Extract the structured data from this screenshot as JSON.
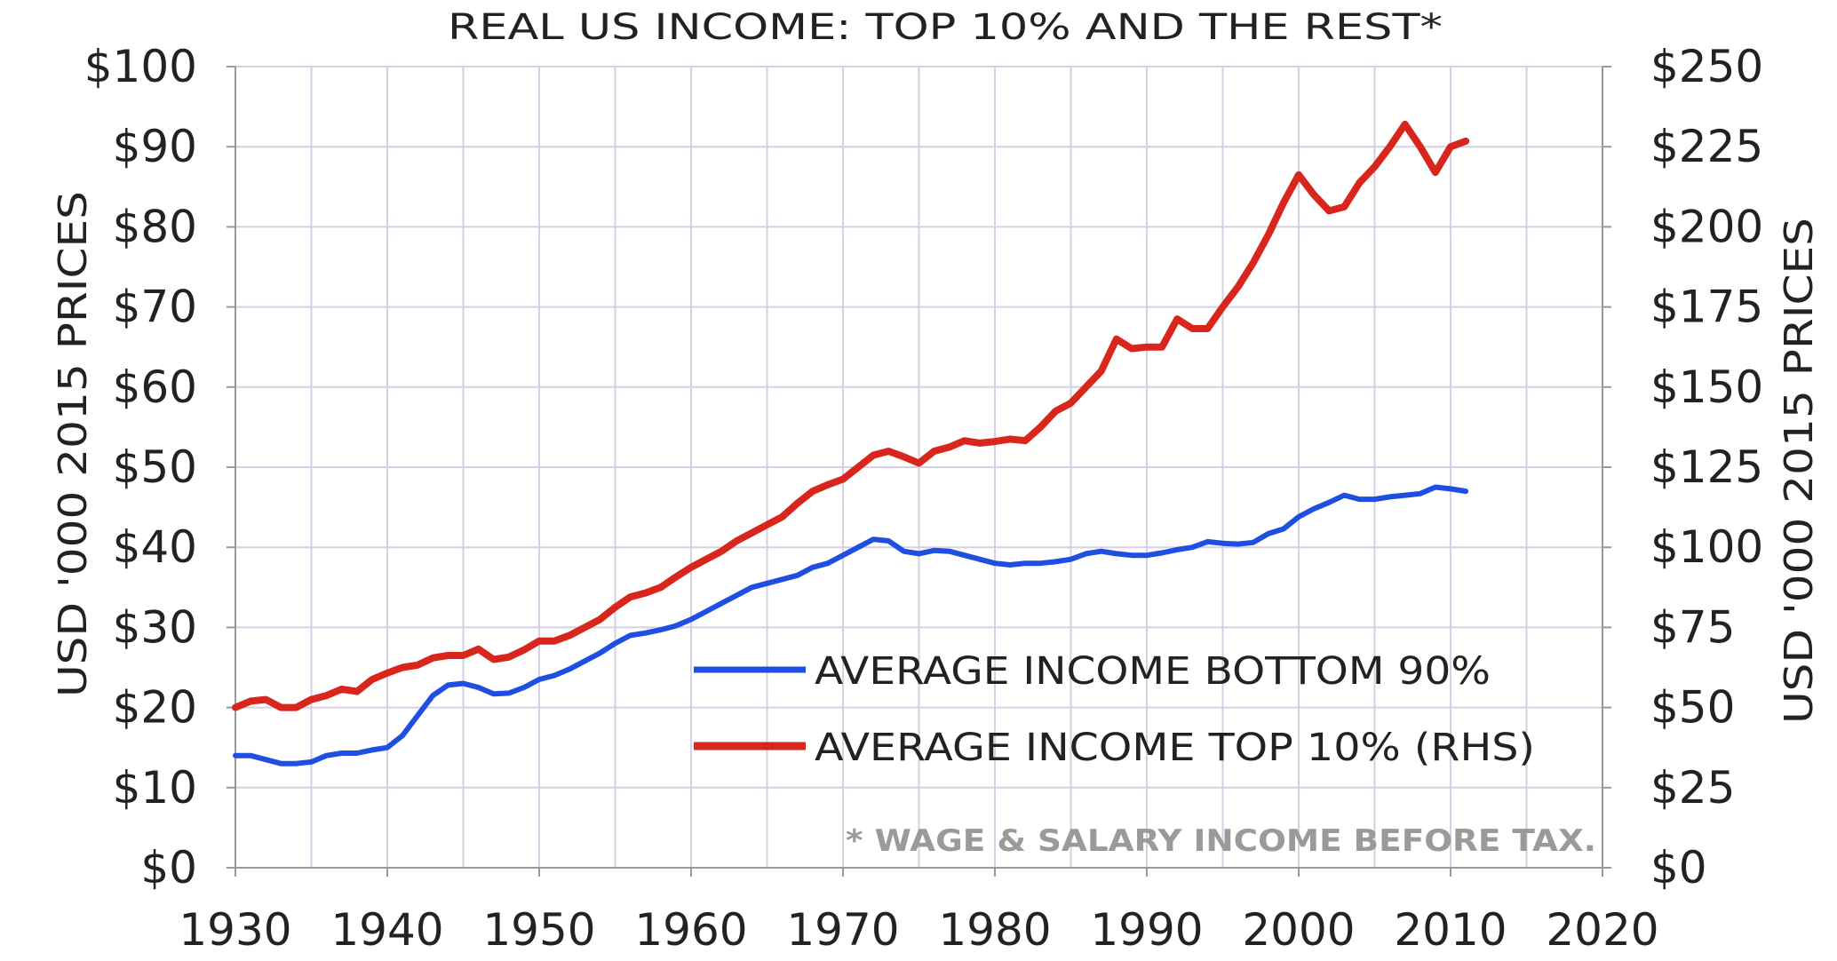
{
  "chart_data": {
    "type": "line",
    "title": "REAL US INCOME: TOP 10% AND THE REST*",
    "xlabel": "",
    "ylabel_left": "USD '000 2015 PRICES",
    "ylabel_right": "USD '000 2015 PRICES",
    "xlim": [
      1930,
      2020
    ],
    "ylim_left": [
      0,
      100
    ],
    "ylim_right": [
      0,
      250
    ],
    "x_ticks": [
      "1930",
      "1940",
      "1950",
      "1960",
      "1970",
      "1980",
      "1990",
      "2000",
      "2010",
      "2020"
    ],
    "y_ticks_left": [
      "$0",
      "$10",
      "$20",
      "$30",
      "$40",
      "$50",
      "$60",
      "$70",
      "$80",
      "$90",
      "$100"
    ],
    "y_ticks_right": [
      "$0",
      "$25",
      "$50",
      "$75",
      "$100",
      "$125",
      "$150",
      "$175",
      "$200",
      "$225",
      "$250"
    ],
    "grid": true,
    "legend_placement": "lower-right",
    "footnote": "* WAGE & SALARY INCOME BEFORE TAX.",
    "x_start": 1930,
    "series": [
      {
        "name": "AVERAGE INCOME BOTTOM 90%",
        "axis": "left",
        "color": "#1f4fe0",
        "values": [
          14,
          14,
          13.5,
          13,
          13,
          13.2,
          14,
          14.3,
          14.3,
          14.7,
          15,
          16.5,
          19,
          21.5,
          22.8,
          23,
          22.5,
          21.7,
          21.8,
          22.5,
          23.5,
          24,
          24.8,
          25.8,
          26.8,
          28,
          29,
          29.3,
          29.7,
          30.2,
          31,
          32,
          33,
          34,
          35,
          35.5,
          36,
          36.5,
          37.5,
          38,
          39,
          40,
          41,
          40.8,
          39.5,
          39.2,
          39.6,
          39.5,
          39,
          38.5,
          38,
          37.8,
          38,
          38,
          38.2,
          38.5,
          39.2,
          39.5,
          39.2,
          39,
          39,
          39.3,
          39.7,
          40,
          40.7,
          40.5,
          40.4,
          40.6,
          41.7,
          42.3,
          43.8,
          44.8,
          45.6,
          46.5,
          46,
          46,
          46.3,
          46.5,
          46.7,
          47.5,
          47.3,
          47
        ]
      },
      {
        "name": "AVERAGE INCOME TOP 10% (RHS)",
        "axis": "right",
        "color": "#d9261c",
        "values": [
          50,
          52,
          52.5,
          50,
          50,
          52.5,
          53.75,
          55.75,
          55,
          58.75,
          60.75,
          62.5,
          63.25,
          65.5,
          66.25,
          66.25,
          68.25,
          65,
          65.75,
          68,
          70.75,
          70.75,
          72.5,
          75,
          77.5,
          81.25,
          84.5,
          85.75,
          87.5,
          90.75,
          93.75,
          96.25,
          98.75,
          102,
          104.5,
          107,
          109.5,
          113.75,
          117.5,
          119.5,
          121.25,
          125,
          128.75,
          130,
          128.25,
          126.25,
          130,
          131.25,
          133.25,
          132.5,
          133,
          133.75,
          133.25,
          137.5,
          142.5,
          145,
          150,
          155,
          165,
          162,
          162.5,
          162.5,
          171.25,
          168.25,
          168.25,
          175,
          181.25,
          188.75,
          197.5,
          207.5,
          216.25,
          210,
          205,
          206.25,
          213.75,
          218.75,
          225,
          232,
          225,
          217,
          225,
          226.75
        ]
      }
    ]
  }
}
